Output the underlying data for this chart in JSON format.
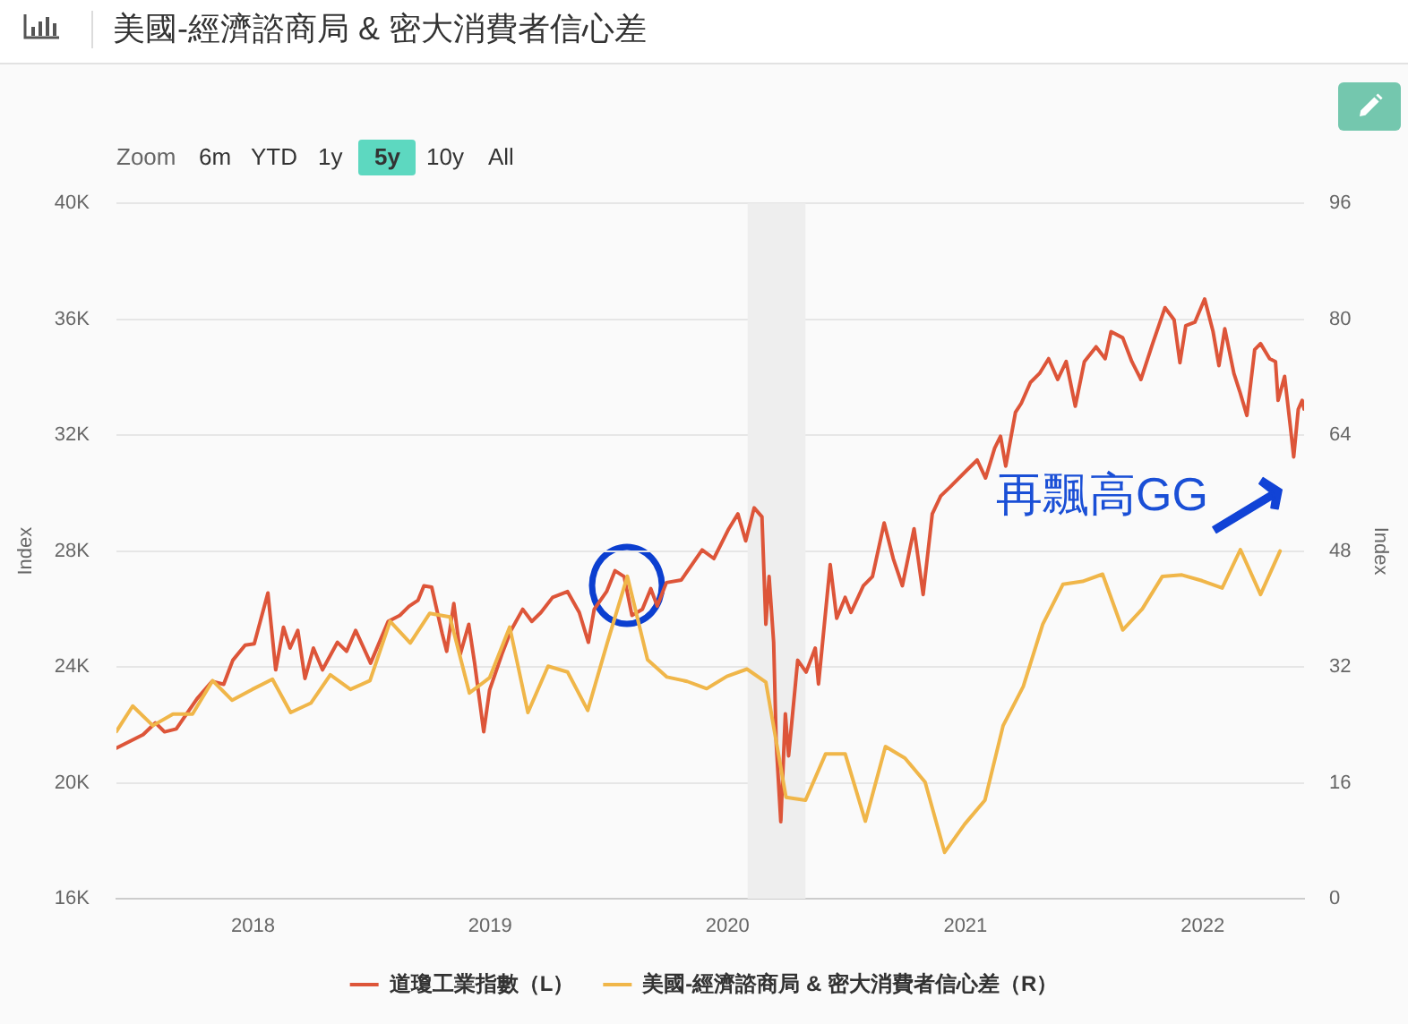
{
  "chart_data": {
    "type": "line",
    "title": "美國-經濟諮商局 & 密大消費者信心差",
    "ylabel": "Index",
    "y2label": "Index",
    "xlim": [
      "2017-06-05",
      "2022-06-06"
    ],
    "xticks": [
      "2018",
      "2019",
      "2020",
      "2021",
      "2022"
    ],
    "ylim": [
      16000,
      40000
    ],
    "yticks": [
      {
        "value": 16000,
        "label": "16K"
      },
      {
        "value": 20000,
        "label": "20K"
      },
      {
        "value": 24000,
        "label": "24K"
      },
      {
        "value": 28000,
        "label": "28K"
      },
      {
        "value": 32000,
        "label": "32K"
      },
      {
        "value": 36000,
        "label": "36K"
      },
      {
        "value": 40000,
        "label": "40K"
      }
    ],
    "y2lim": [
      0,
      96
    ],
    "y2ticks": [
      0,
      16,
      32,
      48,
      64,
      80,
      96
    ],
    "grid": "y",
    "legend": "bottom",
    "bands": [
      {
        "axis": "x",
        "from": "2020-02-01",
        "to": "2020-04-30",
        "color": "#eeeeee"
      }
    ],
    "annotations": [
      "Zoom",
      "6m",
      "YTD",
      "1y",
      "5y",
      "10y",
      "All",
      "再飄高GG"
    ],
    "series": [
      {
        "name": "道瓊工業指數（L）",
        "color": "#dd5539",
        "x": [
          "2017-06-05",
          "2017-07-16",
          "2017-08-04",
          "2017-08-18",
          "2017-09-05",
          "2017-10-07",
          "2017-10-30",
          "2017-11-17",
          "2017-12-01",
          "2017-12-20",
          "2018-01-03",
          "2018-01-24",
          "2018-02-05",
          "2018-02-17",
          "2018-02-27",
          "2018-03-11",
          "2018-03-22",
          "2018-04-04",
          "2018-04-18",
          "2018-05-11",
          "2018-05-25",
          "2018-06-08",
          "2018-07-01",
          "2018-07-28",
          "2018-08-15",
          "2018-08-29",
          "2018-09-12",
          "2018-09-21",
          "2018-10-03",
          "2018-10-19",
          "2018-10-26",
          "2018-11-06",
          "2018-11-16",
          "2018-11-29",
          "2018-12-08",
          "2018-12-22",
          "2018-12-31",
          "2019-01-19",
          "2019-02-02",
          "2019-02-20",
          "2019-03-06",
          "2019-03-20",
          "2019-04-07",
          "2019-04-30",
          "2019-05-18",
          "2019-06-01",
          "2019-06-10",
          "2019-06-29",
          "2019-07-12",
          "2019-07-26",
          "2019-08-07",
          "2019-08-23",
          "2019-09-05",
          "2019-09-15",
          "2019-09-29",
          "2019-10-22",
          "2019-11-23",
          "2019-12-11",
          "2020-01-03",
          "2020-01-17",
          "2020-01-29",
          "2020-02-11",
          "2020-02-23",
          "2020-02-29",
          "2020-03-05",
          "2020-03-12",
          "2020-03-16",
          "2020-03-23",
          "2020-03-30",
          "2020-04-04",
          "2020-04-18",
          "2020-05-01",
          "2020-05-15",
          "2020-05-20",
          "2020-05-29",
          "2020-06-07",
          "2020-06-17",
          "2020-06-30",
          "2020-07-09",
          "2020-07-28",
          "2020-08-11",
          "2020-08-29",
          "2020-09-12",
          "2020-09-26",
          "2020-10-14",
          "2020-10-28",
          "2020-11-11",
          "2020-11-24",
          "2020-12-08",
          "2021-01-05",
          "2021-01-19",
          "2021-02-01",
          "2021-02-15",
          "2021-02-24",
          "2021-03-04",
          "2021-03-19",
          "2021-03-28",
          "2021-04-11",
          "2021-04-25",
          "2021-05-09",
          "2021-05-23",
          "2021-06-05",
          "2021-06-19",
          "2021-07-03",
          "2021-07-21",
          "2021-08-04",
          "2021-08-13",
          "2021-08-31",
          "2021-09-14",
          "2021-09-28",
          "2021-10-16",
          "2021-11-04",
          "2021-11-18",
          "2021-11-27",
          "2021-12-06",
          "2021-12-20",
          "2022-01-04",
          "2022-01-17",
          "2022-01-26",
          "2022-02-04",
          "2022-02-18",
          "2022-02-27",
          "2022-03-10",
          "2022-03-22",
          "2022-03-31",
          "2022-04-14",
          "2022-04-23",
          "2022-04-27",
          "2022-05-07",
          "2022-05-16",
          "2022-05-21",
          "2022-05-28",
          "2022-06-03",
          "2022-06-06"
        ],
        "values": [
          21200,
          21660,
          22070,
          21760,
          21860,
          22900,
          23500,
          23400,
          24230,
          24750,
          24800,
          26550,
          23900,
          25370,
          24650,
          25260,
          23600,
          24650,
          23900,
          24850,
          24540,
          25260,
          24130,
          25570,
          25780,
          26090,
          26300,
          26800,
          26750,
          25160,
          24540,
          26190,
          24440,
          25470,
          24130,
          21760,
          23200,
          24440,
          25260,
          25990,
          25570,
          25880,
          26400,
          26600,
          25880,
          24850,
          25990,
          26600,
          27320,
          27120,
          25780,
          25990,
          26700,
          26100,
          26910,
          27000,
          28040,
          27740,
          28770,
          29280,
          28350,
          29490,
          29180,
          25470,
          27120,
          24850,
          21350,
          18660,
          22380,
          20930,
          24230,
          23820,
          24650,
          23410,
          25470,
          27530,
          25680,
          26400,
          25880,
          26800,
          27120,
          28970,
          27740,
          26800,
          28770,
          26500,
          29280,
          29900,
          30200,
          30830,
          31140,
          30520,
          31550,
          31960,
          30930,
          32790,
          33100,
          33820,
          34130,
          34640,
          33920,
          34540,
          33000,
          34540,
          35050,
          34640,
          35570,
          35360,
          34540,
          33920,
          35160,
          36400,
          35980,
          34500,
          35780,
          35900,
          36700,
          35570,
          34400,
          35670,
          34130,
          33510,
          32680,
          34950,
          35160,
          34640,
          34540,
          33200,
          34030,
          32270,
          31250,
          32890,
          33200,
          32900
        ]
      },
      {
        "name": "美國-經濟諮商局 & 密大消費者信心差（R）",
        "color": "#f0b649",
        "axis": "y2",
        "x": [
          "2017-06-05",
          "2017-06-30",
          "2017-07-31",
          "2017-08-31",
          "2017-09-30",
          "2017-10-31",
          "2017-11-30",
          "2017-12-31",
          "2018-01-31",
          "2018-02-28",
          "2018-03-31",
          "2018-04-30",
          "2018-05-31",
          "2018-06-30",
          "2018-07-31",
          "2018-08-31",
          "2018-09-30",
          "2018-10-31",
          "2018-11-30",
          "2018-12-31",
          "2019-01-31",
          "2019-02-28",
          "2019-03-31",
          "2019-04-30",
          "2019-05-31",
          "2019-06-30",
          "2019-07-31",
          "2019-08-31",
          "2019-09-30",
          "2019-10-31",
          "2019-11-30",
          "2019-12-31",
          "2020-01-31",
          "2020-02-29",
          "2020-03-31",
          "2020-04-30",
          "2020-05-31",
          "2020-06-30",
          "2020-07-31",
          "2020-08-31",
          "2020-09-30",
          "2020-10-31",
          "2020-11-30",
          "2020-12-31",
          "2021-01-31",
          "2021-02-28",
          "2021-03-31",
          "2021-04-30",
          "2021-05-31",
          "2021-06-30",
          "2021-07-31",
          "2021-08-31",
          "2021-09-30",
          "2021-10-31",
          "2021-11-30",
          "2021-12-31",
          "2022-01-31",
          "2022-02-28",
          "2022-03-31",
          "2022-04-30"
        ],
        "values": [
          23.1,
          26.6,
          23.9,
          25.5,
          25.5,
          30.1,
          27.4,
          28.9,
          30.3,
          25.7,
          27.0,
          30.9,
          28.9,
          30.1,
          38.3,
          35.3,
          39.4,
          38.9,
          28.4,
          30.5,
          37.5,
          25.7,
          32.1,
          31.3,
          26.0,
          35.3,
          44.5,
          33.0,
          30.6,
          30.0,
          29.0,
          30.7,
          31.7,
          29.9,
          14.0,
          13.6,
          20.0,
          20.0,
          10.7,
          21.0,
          19.4,
          16.1,
          6.4,
          10.3,
          13.6,
          23.9,
          29.3,
          37.9,
          43.4,
          43.8,
          44.8,
          37.1,
          40.0,
          44.5,
          44.7,
          43.9,
          42.9,
          48.2,
          42.0,
          48.0
        ]
      }
    ]
  }
}
